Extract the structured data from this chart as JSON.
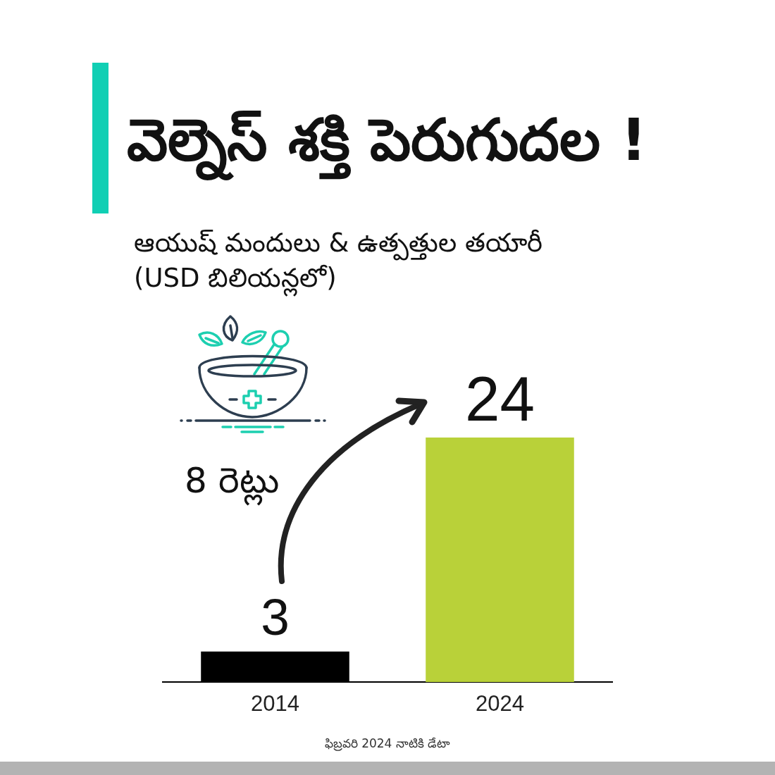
{
  "chart_data": {
    "type": "bar",
    "title": "వెల్నెస్ శక్తి పెరుగుదల !",
    "subtitle": "ఆయుష్ మందులు & ఉత్పత్తుల తయారీ\n(USD బిలియన్లలో)",
    "categories": [
      "2014",
      "2024"
    ],
    "values": [
      3,
      24
    ],
    "colors": [
      "#000000",
      "#b9d139"
    ],
    "tick_labels": "x",
    "grid": false,
    "legend": false,
    "data_labels": true,
    "annotations": [
      "8 రెట్లు",
      "ఫిబ్రవరి 2024 నాటికి డేటా"
    ]
  }
}
